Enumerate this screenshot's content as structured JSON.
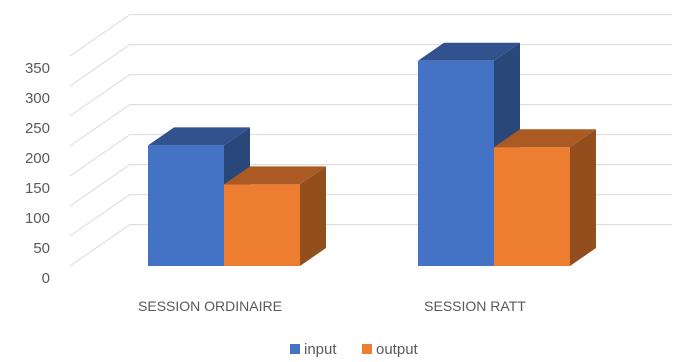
{
  "chart_data": {
    "type": "bar",
    "style": "3d-clustered-column",
    "categories": [
      "SESSION ORDINAIRE",
      "SESSION RATT"
    ],
    "series": [
      {
        "name": "input",
        "values": [
          201,
          342
        ],
        "color": "#4472C4"
      },
      {
        "name": "output",
        "values": [
          136,
          198
        ],
        "color": "#ED7D31"
      }
    ],
    "ylim": [
      0,
      375
    ],
    "yticks": [
      0,
      50,
      100,
      150,
      200,
      250,
      300,
      350
    ],
    "grid": true,
    "legend": "bottom",
    "title": "",
    "xlabel": "",
    "ylabel": ""
  }
}
